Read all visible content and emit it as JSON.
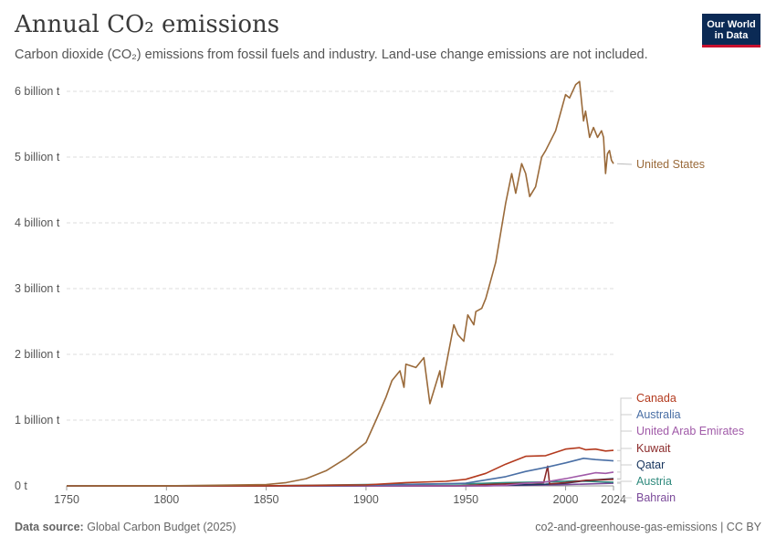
{
  "header": {
    "title": "Annual CO₂ emissions",
    "subtitle": "Carbon dioxide (CO₂) emissions from fossil fuels and industry. Land-use change emissions are not included.",
    "logo_line1": "Our World",
    "logo_line2": "in Data"
  },
  "footer": {
    "source_label": "Data source:",
    "source_value": "Global Carbon Budget (2025)",
    "url": "co2-and-greenhouse-gas-emissions | CC BY"
  },
  "chart_data": {
    "type": "line",
    "title": "Annual CO₂ emissions",
    "ylim": [
      0,
      6000000000
    ],
    "xlim": [
      1750,
      2024
    ],
    "y_ticks": [
      {
        "value": 0,
        "label": "0 t"
      },
      {
        "value": 1000000000,
        "label": "1 billion t"
      },
      {
        "value": 2000000000,
        "label": "2 billion t"
      },
      {
        "value": 3000000000,
        "label": "3 billion t"
      },
      {
        "value": 4000000000,
        "label": "4 billion t"
      },
      {
        "value": 5000000000,
        "label": "5 billion t"
      },
      {
        "value": 6000000000,
        "label": "6 billion t"
      }
    ],
    "x_ticks": [
      {
        "value": 1750,
        "label": "1750"
      },
      {
        "value": 1800,
        "label": "1800"
      },
      {
        "value": 1850,
        "label": "1850"
      },
      {
        "value": 1900,
        "label": "1900"
      },
      {
        "value": 1950,
        "label": "1950"
      },
      {
        "value": 2000,
        "label": "2000"
      },
      {
        "value": 2024,
        "label": "2024"
      }
    ],
    "grid": true,
    "legend": "right",
    "series": [
      {
        "name": "United States",
        "color": "#9a6a3a",
        "points": [
          [
            1750,
            0
          ],
          [
            1800,
            2000000
          ],
          [
            1850,
            20000000
          ],
          [
            1860,
            50000000
          ],
          [
            1870,
            110000000
          ],
          [
            1880,
            230000000
          ],
          [
            1890,
            420000000
          ],
          [
            1900,
            660000000
          ],
          [
            1905,
            1000000000
          ],
          [
            1910,
            1350000000
          ],
          [
            1913,
            1600000000
          ],
          [
            1917,
            1750000000
          ],
          [
            1919,
            1500000000
          ],
          [
            1920,
            1850000000
          ],
          [
            1925,
            1800000000
          ],
          [
            1929,
            1950000000
          ],
          [
            1932,
            1250000000
          ],
          [
            1937,
            1750000000
          ],
          [
            1938,
            1500000000
          ],
          [
            1944,
            2450000000
          ],
          [
            1946,
            2300000000
          ],
          [
            1949,
            2200000000
          ],
          [
            1951,
            2600000000
          ],
          [
            1954,
            2450000000
          ],
          [
            1955,
            2650000000
          ],
          [
            1958,
            2700000000
          ],
          [
            1960,
            2850000000
          ],
          [
            1965,
            3400000000
          ],
          [
            1970,
            4300000000
          ],
          [
            1973,
            4750000000
          ],
          [
            1975,
            4450000000
          ],
          [
            1978,
            4900000000
          ],
          [
            1980,
            4750000000
          ],
          [
            1982,
            4400000000
          ],
          [
            1985,
            4550000000
          ],
          [
            1988,
            5000000000
          ],
          [
            1990,
            5100000000
          ],
          [
            1995,
            5400000000
          ],
          [
            2000,
            5950000000
          ],
          [
            2002,
            5900000000
          ],
          [
            2005,
            6100000000
          ],
          [
            2007,
            6150000000
          ],
          [
            2009,
            5550000000
          ],
          [
            2010,
            5700000000
          ],
          [
            2012,
            5300000000
          ],
          [
            2014,
            5450000000
          ],
          [
            2016,
            5300000000
          ],
          [
            2018,
            5400000000
          ],
          [
            2019,
            5300000000
          ],
          [
            2020,
            4750000000
          ],
          [
            2021,
            5050000000
          ],
          [
            2022,
            5100000000
          ],
          [
            2023,
            4950000000
          ],
          [
            2024,
            4900000000
          ]
        ]
      },
      {
        "name": "Canada",
        "color": "#b33a1e",
        "points": [
          [
            1750,
            0
          ],
          [
            1850,
            1000000
          ],
          [
            1900,
            15000000
          ],
          [
            1920,
            50000000
          ],
          [
            1940,
            70000000
          ],
          [
            1950,
            100000000
          ],
          [
            1960,
            190000000
          ],
          [
            1970,
            330000000
          ],
          [
            1980,
            450000000
          ],
          [
            1990,
            460000000
          ],
          [
            2000,
            560000000
          ],
          [
            2007,
            580000000
          ],
          [
            2010,
            550000000
          ],
          [
            2015,
            560000000
          ],
          [
            2020,
            530000000
          ],
          [
            2024,
            540000000
          ]
        ]
      },
      {
        "name": "Australia",
        "color": "#4a6fa5",
        "points": [
          [
            1750,
            0
          ],
          [
            1850,
            500000
          ],
          [
            1900,
            10000000
          ],
          [
            1950,
            40000000
          ],
          [
            1970,
            140000000
          ],
          [
            1980,
            220000000
          ],
          [
            1990,
            280000000
          ],
          [
            2000,
            350000000
          ],
          [
            2009,
            420000000
          ],
          [
            2015,
            400000000
          ],
          [
            2020,
            390000000
          ],
          [
            2024,
            380000000
          ]
        ]
      },
      {
        "name": "United Arab Emirates",
        "color": "#a05aa8",
        "points": [
          [
            1750,
            0
          ],
          [
            1960,
            0
          ],
          [
            1970,
            10000000
          ],
          [
            1980,
            40000000
          ],
          [
            1990,
            60000000
          ],
          [
            2000,
            110000000
          ],
          [
            2010,
            170000000
          ],
          [
            2015,
            200000000
          ],
          [
            2020,
            190000000
          ],
          [
            2024,
            210000000
          ]
        ]
      },
      {
        "name": "Kuwait",
        "color": "#8b2a2a",
        "points": [
          [
            1750,
            0
          ],
          [
            1945,
            0
          ],
          [
            1960,
            20000000
          ],
          [
            1970,
            30000000
          ],
          [
            1980,
            40000000
          ],
          [
            1989,
            50000000
          ],
          [
            1991,
            300000000
          ],
          [
            1992,
            30000000
          ],
          [
            2000,
            50000000
          ],
          [
            2010,
            85000000
          ],
          [
            2024,
            100000000
          ]
        ]
      },
      {
        "name": "Qatar",
        "color": "#18355e",
        "points": [
          [
            1750,
            0
          ],
          [
            1950,
            0
          ],
          [
            1970,
            10000000
          ],
          [
            1990,
            25000000
          ],
          [
            2000,
            40000000
          ],
          [
            2010,
            80000000
          ],
          [
            2024,
            110000000
          ]
        ]
      },
      {
        "name": "Austria",
        "color": "#2f8a7d",
        "points": [
          [
            1750,
            0
          ],
          [
            1850,
            2000000
          ],
          [
            1900,
            20000000
          ],
          [
            1950,
            30000000
          ],
          [
            1970,
            50000000
          ],
          [
            1990,
            60000000
          ],
          [
            2005,
            75000000
          ],
          [
            2020,
            60000000
          ],
          [
            2024,
            55000000
          ]
        ]
      },
      {
        "name": "Bahrain",
        "color": "#7b4a9a",
        "points": [
          [
            1750,
            0
          ],
          [
            1960,
            0
          ],
          [
            1980,
            10000000
          ],
          [
            2000,
            20000000
          ],
          [
            2024,
            40000000
          ]
        ]
      }
    ]
  }
}
